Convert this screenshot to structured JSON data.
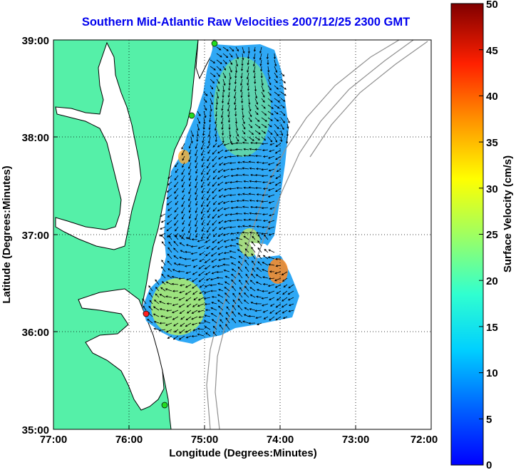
{
  "title": "Southern Mid-Atlantic Raw Velocities 2007/12/25 2300 GMT",
  "x_axis": {
    "label": "Longitude (Degrees:Minutes)",
    "ticks": [
      "77:00",
      "76:00",
      "75:00",
      "74:00",
      "73:00",
      "72:00"
    ]
  },
  "y_axis": {
    "label": "Latitude (Degrees:Minutes)",
    "ticks": [
      "39:00",
      "38:00",
      "37:00",
      "36:00",
      "35:00"
    ]
  },
  "colorbar": {
    "label": "Surface Velocity (cm/s)",
    "ticks": [
      "50",
      "45",
      "40",
      "35",
      "30",
      "25",
      "20",
      "15",
      "10",
      "5",
      "0"
    ],
    "min": 0,
    "max": 50,
    "colormap": "jet"
  },
  "colors": {
    "land": "#55f0a8",
    "coast": "#000000",
    "bathymetry": "#909090",
    "title": "#0000ee",
    "grid": "#000000"
  },
  "chart_data": {
    "type": "map",
    "grid": "dotted",
    "xlim": [
      -77,
      -72
    ],
    "ylim": [
      35,
      39
    ],
    "stations": [
      {
        "lon": -74.9,
        "lat": 39.0,
        "color": "green"
      },
      {
        "lon": -75.1,
        "lat": 38.22,
        "color": "green"
      },
      {
        "lon": -75.7,
        "lat": 36.18,
        "color": "red"
      },
      {
        "lon": -75.5,
        "lat": 35.27,
        "color": "green"
      }
    ]
  }
}
